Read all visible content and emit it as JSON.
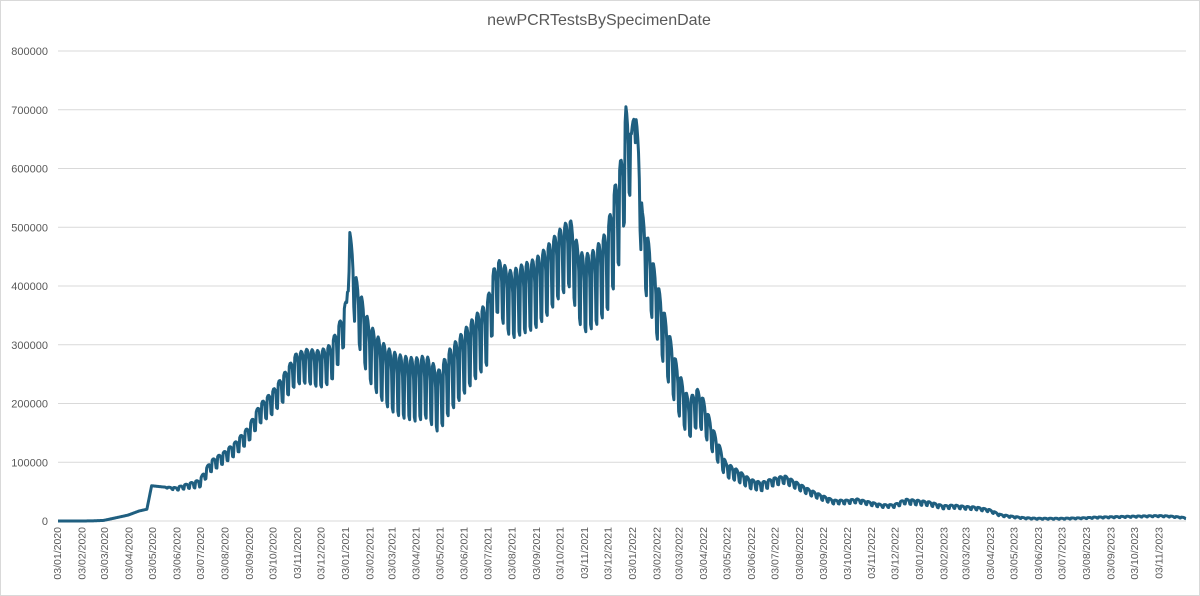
{
  "chart_data": {
    "type": "line",
    "title": "newPCRTestsBySpecimenDate",
    "xlabel": "",
    "ylabel": "",
    "ylim": [
      0,
      800000
    ],
    "y_ticks": [
      "0",
      "100000",
      "200000",
      "300000",
      "400000",
      "500000",
      "600000",
      "700000",
      "800000"
    ],
    "x_tick_labels": [
      "03/01/2020",
      "03/02/2020",
      "03/03/2020",
      "03/04/2020",
      "03/05/2020",
      "03/06/2020",
      "03/07/2020",
      "03/08/2020",
      "03/09/2020",
      "03/10/2020",
      "03/11/2020",
      "03/12/2020",
      "03/01/2021",
      "03/02/2021",
      "03/03/2021",
      "03/04/2021",
      "03/05/2021",
      "03/06/2021",
      "03/07/2021",
      "03/08/2021",
      "03/09/2021",
      "03/10/2021",
      "03/11/2021",
      "03/12/2021",
      "03/01/2022",
      "03/02/2022",
      "03/03/2022",
      "03/04/2022",
      "03/05/2022",
      "03/06/2022",
      "03/07/2022",
      "03/08/2022",
      "03/09/2022",
      "03/10/2022",
      "03/11/2022",
      "03/12/2022",
      "03/01/2023",
      "03/02/2023",
      "03/03/2023",
      "03/04/2023",
      "03/05/2023",
      "03/06/2023",
      "03/07/2023",
      "03/08/2023",
      "03/09/2023",
      "03/10/2023",
      "03/11/2023"
    ],
    "grid": true,
    "legend": "none",
    "line_color": "#1f5f80",
    "series": [
      {
        "x": [
          "2020-01-03",
          "2020-02-01",
          "2020-02-15",
          "2020-03-01",
          "2020-03-15",
          "2020-04-01",
          "2020-04-15",
          "2020-04-25",
          "2020-05-01",
          "2020-05-15",
          "2020-06-01",
          "2020-06-15",
          "2020-07-01",
          "2020-07-15",
          "2020-08-01",
          "2020-08-15",
          "2020-09-01",
          "2020-09-15",
          "2020-10-01",
          "2020-10-15",
          "2020-11-01",
          "2020-11-15",
          "2020-12-01",
          "2020-12-15",
          "2020-12-28",
          "2021-01-04",
          "2021-01-08",
          "2021-01-15",
          "2021-02-01",
          "2021-02-15",
          "2021-03-01",
          "2021-03-15",
          "2021-04-01",
          "2021-04-15",
          "2021-05-01",
          "2021-05-15",
          "2021-06-01",
          "2021-06-15",
          "2021-07-01",
          "2021-07-10",
          "2021-07-15",
          "2021-08-01",
          "2021-08-15",
          "2021-09-01",
          "2021-09-15",
          "2021-10-01",
          "2021-10-15",
          "2021-10-25",
          "2021-11-01",
          "2021-11-15",
          "2021-12-01",
          "2021-12-10",
          "2021-12-20",
          "2021-12-25",
          "2022-01-01",
          "2022-01-05",
          "2022-01-10",
          "2022-01-15",
          "2022-02-01",
          "2022-02-15",
          "2022-03-01",
          "2022-03-15",
          "2022-03-25",
          "2022-04-01",
          "2022-04-15",
          "2022-05-01",
          "2022-05-15",
          "2022-06-01",
          "2022-06-15",
          "2022-07-01",
          "2022-07-15",
          "2022-08-01",
          "2022-08-15",
          "2022-09-01",
          "2022-09-15",
          "2022-10-01",
          "2022-10-15",
          "2022-11-01",
          "2022-11-15",
          "2022-12-01",
          "2022-12-15",
          "2023-01-01",
          "2023-01-15",
          "2023-02-01",
          "2023-02-15",
          "2023-03-01",
          "2023-03-15",
          "2023-04-01",
          "2023-04-15",
          "2023-05-01",
          "2023-05-15",
          "2023-06-01",
          "2023-06-15",
          "2023-07-01",
          "2023-07-15",
          "2023-08-01",
          "2023-08-15",
          "2023-09-01",
          "2023-09-15",
          "2023-10-01",
          "2023-10-15",
          "2023-11-01",
          "2023-11-15",
          "2023-12-01",
          "2023-12-07"
        ],
        "y": [
          0,
          0,
          200,
          1000,
          5000,
          10000,
          17000,
          20000,
          60000,
          58000,
          55000,
          60000,
          65000,
          95000,
          110000,
          125000,
          150000,
          185000,
          205000,
          230000,
          265000,
          270000,
          265000,
          275000,
          320000,
          355000,
          480000,
          380000,
          300000,
          270000,
          250000,
          240000,
          235000,
          240000,
          215000,
          250000,
          280000,
          305000,
          330000,
          390000,
          410000,
          380000,
          390000,
          400000,
          420000,
          450000,
          470000,
          420000,
          400000,
          410000,
          440000,
          500000,
          560000,
          640000,
          620000,
          700000,
          600000,
          480000,
          380000,
          300000,
          230000,
          180000,
          200000,
          190000,
          140000,
          90000,
          80000,
          65000,
          60000,
          68000,
          72000,
          60000,
          50000,
          40000,
          33000,
          33000,
          35000,
          30000,
          26000,
          26000,
          34000,
          32000,
          30000,
          24000,
          25000,
          23000,
          22000,
          18000,
          10000,
          7000,
          5000,
          4000,
          4000,
          4000,
          4500,
          5000,
          6000,
          6500,
          7000,
          7500,
          8000,
          8500,
          8000,
          6000,
          5000
        ],
        "weekly_amplitude": [
          0,
          0,
          0,
          0,
          0,
          0,
          0,
          0,
          0,
          0,
          3000,
          5000,
          8000,
          12000,
          12000,
          14000,
          16000,
          20000,
          24000,
          28000,
          32000,
          35000,
          38000,
          40000,
          40000,
          38000,
          20000,
          60000,
          60000,
          60000,
          62000,
          64000,
          65000,
          65000,
          65000,
          66000,
          66000,
          66000,
          65000,
          60000,
          55000,
          70000,
          72000,
          72000,
          72000,
          70000,
          70000,
          75000,
          80000,
          80000,
          85000,
          100000,
          100000,
          100000,
          60000,
          30000,
          60000,
          70000,
          60000,
          55000,
          45000,
          40000,
          40000,
          35000,
          25000,
          15000,
          12000,
          10000,
          9000,
          8000,
          8000,
          7000,
          6000,
          5000,
          4000,
          4000,
          4000,
          3500,
          3000,
          3000,
          5000,
          5000,
          4000,
          3500,
          3500,
          3000,
          3000,
          2500,
          2000,
          1500,
          1200,
          1000,
          1000,
          1000,
          1000,
          1000,
          1200,
          1200,
          1200,
          1200,
          1200,
          1200,
          1200,
          1000,
          1000
        ]
      }
    ]
  }
}
